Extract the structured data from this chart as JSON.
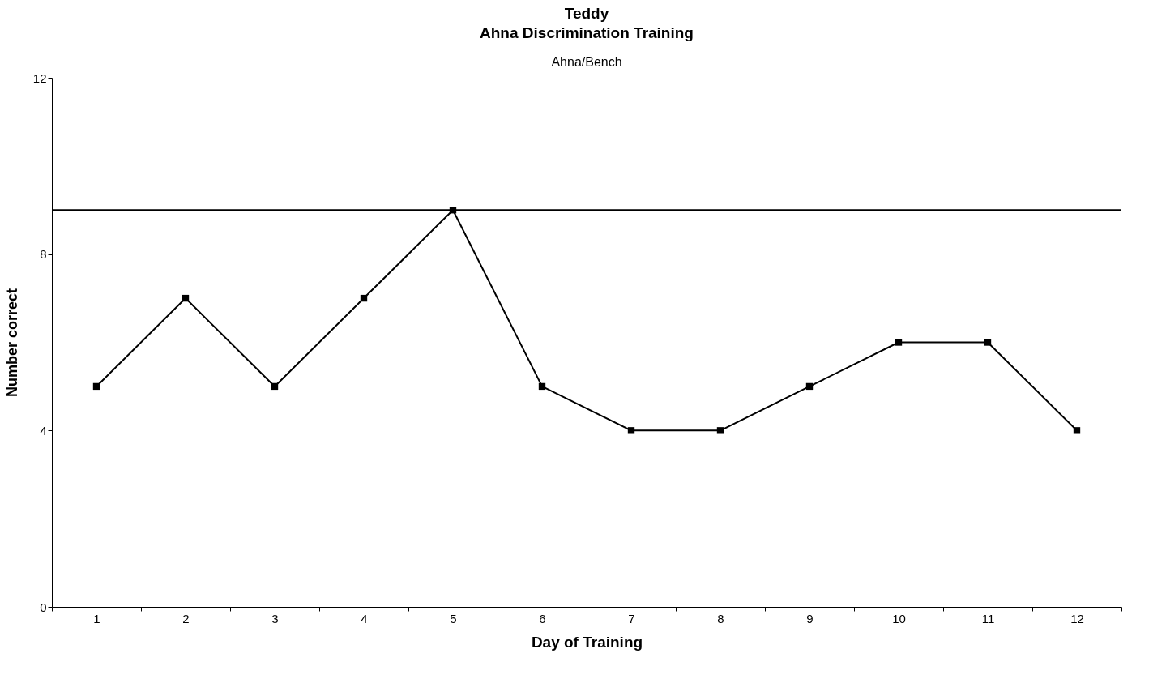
{
  "chart_data": {
    "type": "line",
    "title": "Teddy\nAhna Discrimination Training",
    "subtitle": "Ahna/Bench",
    "xlabel": "Day of Training",
    "ylabel": "Number correct",
    "categories": [
      "1",
      "2",
      "3",
      "4",
      "5",
      "6",
      "7",
      "8",
      "9",
      "10",
      "11",
      "12"
    ],
    "series": [
      {
        "color": "#000000",
        "values": [
          5,
          7,
          5,
          7,
          9,
          5,
          4,
          4,
          5,
          6,
          6,
          4
        ]
      }
    ],
    "ylim": [
      0,
      12
    ],
    "yticks": [
      0,
      4,
      8,
      12
    ],
    "ref_lines": [
      {
        "axis": "y",
        "value": 9,
        "color": "#000000"
      }
    ],
    "marker": "square",
    "line_style": "solid",
    "grid": false
  }
}
